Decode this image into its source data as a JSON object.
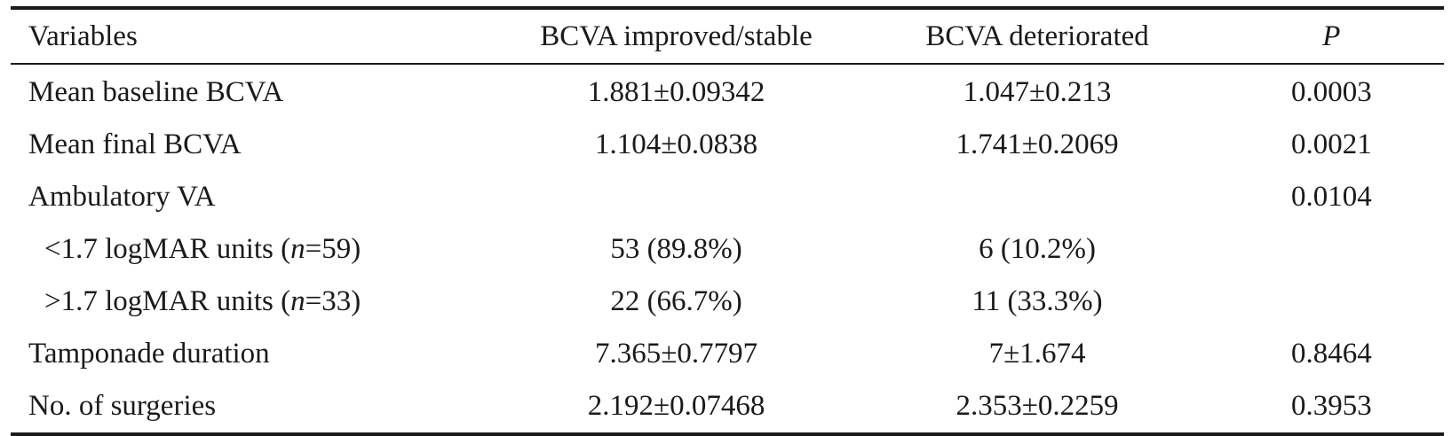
{
  "table": {
    "headers": {
      "variables": "Variables",
      "improved": "BCVA improved/stable",
      "deteriorated": "BCVA deteriorated",
      "p": "P"
    },
    "rows": [
      {
        "label": "Mean baseline BCVA",
        "improved": "1.881±0.09342",
        "deteriorated": "1.047±0.213",
        "p": "0.0003"
      },
      {
        "label": "Mean final BCVA",
        "improved": "1.104±0.0838",
        "deteriorated": "1.741±0.2069",
        "p": "0.0021"
      },
      {
        "label": "Ambulatory VA",
        "improved": "",
        "deteriorated": "",
        "p": "0.0104"
      },
      {
        "label_prefix": "<1.7 logMAR units (",
        "label_n": "n",
        "label_suffix": "=59)",
        "improved": "53 (89.8%)",
        "deteriorated": "6 (10.2%)",
        "p": ""
      },
      {
        "label_prefix": ">1.7 logMAR units (",
        "label_n": "n",
        "label_suffix": "=33)",
        "improved": "22 (66.7%)",
        "deteriorated": "11 (33.3%)",
        "p": ""
      },
      {
        "label": "Tamponade duration",
        "improved": "7.365±0.7797",
        "deteriorated": "7±1.674",
        "p": "0.8464"
      },
      {
        "label": "No. of surgeries",
        "improved": "2.192±0.07468",
        "deteriorated": "2.353±0.2259",
        "p": "0.3953"
      }
    ]
  }
}
